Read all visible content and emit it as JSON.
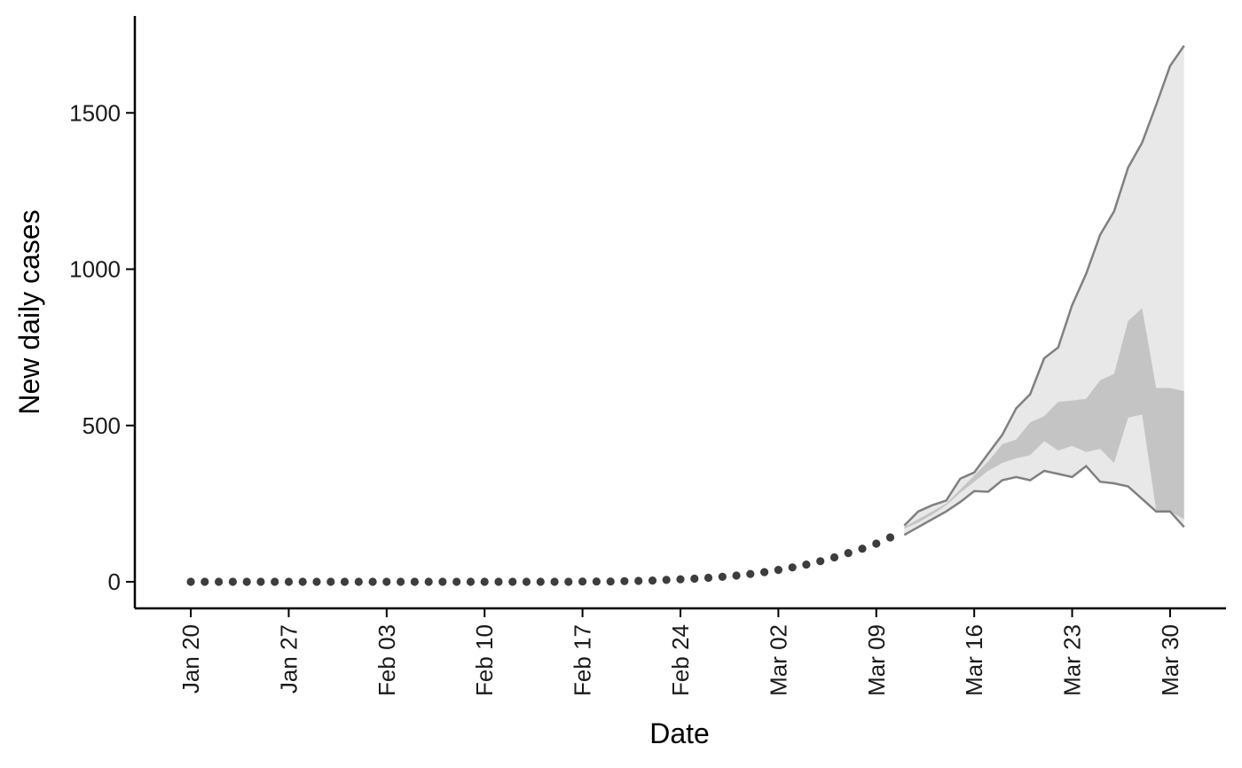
{
  "chart_data": {
    "type": "line",
    "xlabel": "Date",
    "ylabel": "New daily cases",
    "xlim": [
      "2020-01-16",
      "2020-04-03"
    ],
    "ylim": [
      -85,
      1810
    ],
    "x_ticks": [
      "2020-01-20",
      "2020-01-27",
      "2020-02-03",
      "2020-02-10",
      "2020-02-17",
      "2020-02-24",
      "2020-03-02",
      "2020-03-09",
      "2020-03-16",
      "2020-03-23",
      "2020-03-30"
    ],
    "x_tick_labels": [
      "Jan 20",
      "Jan 27",
      "Feb 03",
      "Feb 10",
      "Feb 17",
      "Feb 24",
      "Mar 02",
      "Mar 09",
      "Mar 16",
      "Mar 23",
      "Mar 30"
    ],
    "y_ticks": [
      0,
      500,
      1000,
      1500
    ],
    "y_tick_labels": [
      "0",
      "500",
      "1000",
      "1500"
    ],
    "grid": false,
    "colors": {
      "observed_points": "#3d3d3d",
      "outer_band": "#e8e8e8",
      "inner_band": "#c4c4c4",
      "band_edge_line": "#808080",
      "axis": "#000000"
    },
    "observed": {
      "x": [
        "2020-01-20",
        "2020-01-21",
        "2020-01-22",
        "2020-01-23",
        "2020-01-24",
        "2020-01-25",
        "2020-01-26",
        "2020-01-27",
        "2020-01-28",
        "2020-01-29",
        "2020-01-30",
        "2020-01-31",
        "2020-02-01",
        "2020-02-02",
        "2020-02-03",
        "2020-02-04",
        "2020-02-05",
        "2020-02-06",
        "2020-02-07",
        "2020-02-08",
        "2020-02-09",
        "2020-02-10",
        "2020-02-11",
        "2020-02-12",
        "2020-02-13",
        "2020-02-14",
        "2020-02-15",
        "2020-02-16",
        "2020-02-17",
        "2020-02-18",
        "2020-02-19",
        "2020-02-20",
        "2020-02-21",
        "2020-02-22",
        "2020-02-23",
        "2020-02-24",
        "2020-02-25",
        "2020-02-26",
        "2020-02-27",
        "2020-02-28",
        "2020-02-29",
        "2020-03-01",
        "2020-03-02",
        "2020-03-03",
        "2020-03-04",
        "2020-03-05",
        "2020-03-06",
        "2020-03-07",
        "2020-03-08",
        "2020-03-09",
        "2020-03-10"
      ],
      "y": [
        0,
        0,
        0,
        0,
        0,
        0,
        0,
        0,
        0,
        0,
        0,
        0,
        0,
        0,
        0,
        0,
        0,
        0,
        0,
        0,
        0,
        0,
        0,
        0,
        0,
        0,
        0,
        0,
        1,
        1,
        1,
        2,
        3,
        4,
        6,
        8,
        10,
        13,
        16,
        20,
        25,
        31,
        38,
        46,
        55,
        66,
        78,
        92,
        106,
        122,
        142
      ]
    },
    "projection": {
      "x": [
        "2020-03-11",
        "2020-03-12",
        "2020-03-13",
        "2020-03-14",
        "2020-03-15",
        "2020-03-16",
        "2020-03-17",
        "2020-03-18",
        "2020-03-19",
        "2020-03-20",
        "2020-03-21",
        "2020-03-22",
        "2020-03-23",
        "2020-03-24",
        "2020-03-25",
        "2020-03-26",
        "2020-03-27",
        "2020-03-28",
        "2020-03-29",
        "2020-03-30",
        "2020-03-31"
      ],
      "outer_upper": [
        180,
        225,
        245,
        260,
        330,
        350,
        410,
        470,
        555,
        600,
        715,
        750,
        885,
        985,
        1110,
        1185,
        1325,
        1405,
        1525,
        1650,
        1715
      ],
      "outer_lower": [
        150,
        175,
        200,
        225,
        255,
        290,
        288,
        325,
        335,
        325,
        355,
        345,
        335,
        370,
        320,
        315,
        305,
        265,
        225,
        225,
        175
      ],
      "inner_upper": [
        175,
        200,
        225,
        250,
        295,
        340,
        385,
        440,
        455,
        510,
        530,
        575,
        580,
        585,
        645,
        665,
        835,
        875,
        620,
        620,
        610
      ],
      "inner_lower": [
        170,
        190,
        215,
        245,
        285,
        320,
        355,
        380,
        395,
        405,
        450,
        420,
        435,
        415,
        425,
        380,
        525,
        535,
        230,
        225,
        200
      ]
    }
  }
}
